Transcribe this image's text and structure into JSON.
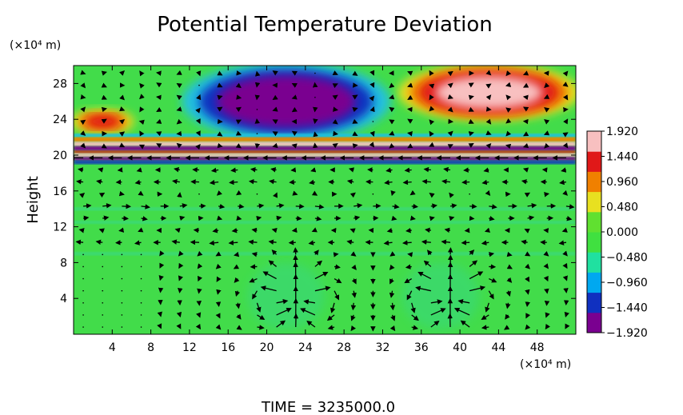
{
  "chart_data": {
    "type": "heatmap",
    "title": "Potential Temperature Deviation",
    "ylabel": "Height",
    "xunit": "(×10⁴ m)",
    "yunit": "(×10⁴ m)",
    "xlim": [
      0,
      52
    ],
    "ylim": [
      0,
      30
    ],
    "x_ticks": [
      4,
      8,
      12,
      16,
      20,
      24,
      28,
      32,
      36,
      40,
      44,
      48
    ],
    "y_ticks": [
      4,
      8,
      12,
      16,
      20,
      24,
      28
    ],
    "colorbar": {
      "range": [
        -1.92,
        1.92
      ],
      "tick_values": [
        1.92,
        1.44,
        0.96,
        0.48,
        0.0,
        -0.48,
        -0.96,
        -1.44,
        -1.92
      ],
      "tick_labels": [
        "1.920",
        "1.440",
        "0.960",
        "0.480",
        "0.000",
        "−0.480",
        "−0.960",
        "−1.440",
        "−1.920"
      ],
      "colors": [
        "#7a0090",
        "#1030c0",
        "#00a8f0",
        "#20e0a0",
        "#40e040",
        "#60e030",
        "#e8e020",
        "#f08000",
        "#e01818",
        "#f8c0c0"
      ]
    },
    "features": [
      {
        "kind": "warm-anomaly",
        "x": [
          34,
          52
        ],
        "y": [
          24,
          30
        ],
        "peak": 1.92
      },
      {
        "kind": "cold-anomaly",
        "x": [
          12,
          32
        ],
        "y": [
          22,
          30
        ],
        "peak": -1.92
      },
      {
        "kind": "warm-anomaly",
        "x": [
          0,
          6
        ],
        "y": [
          22.5,
          25
        ],
        "peak": 1.2
      },
      {
        "kind": "layered-band",
        "x": [
          0,
          52
        ],
        "y": [
          19,
          22.5
        ]
      },
      {
        "kind": "vortex-pair",
        "x": [
          18,
          26
        ],
        "y": [
          0.5,
          8
        ]
      },
      {
        "kind": "vortex-pair",
        "x": [
          34,
          42
        ],
        "y": [
          0.5,
          8
        ]
      }
    ],
    "vector_field": "wind-vectors"
  },
  "footer": {
    "time_label": "TIME",
    "time_value": "3235000.0"
  }
}
